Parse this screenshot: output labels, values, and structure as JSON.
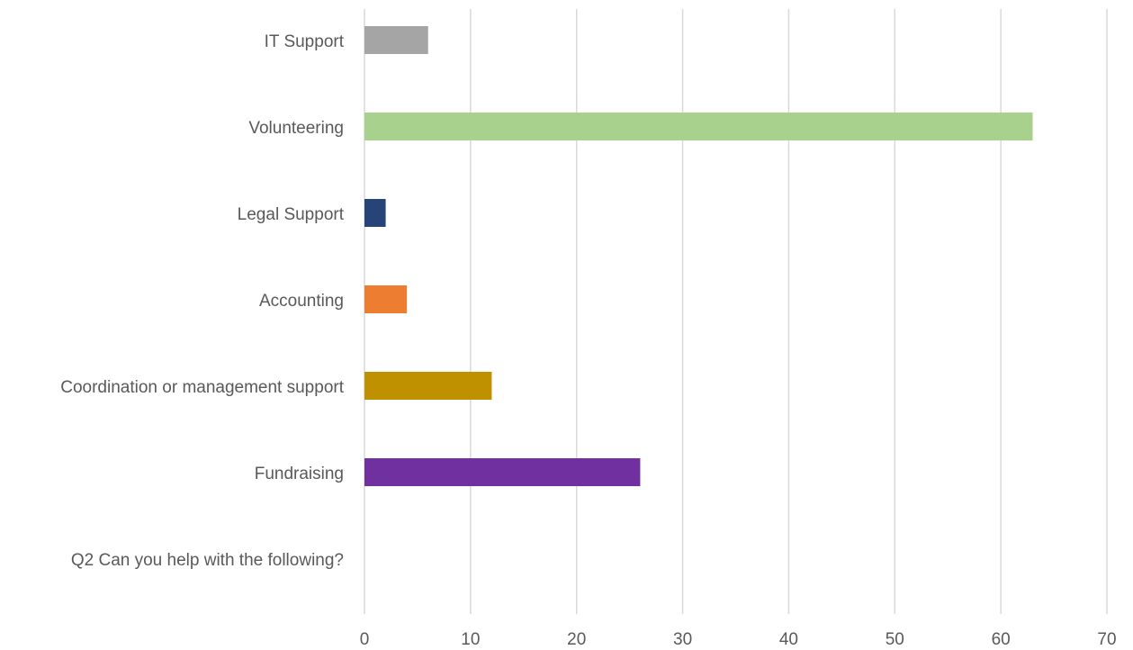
{
  "chart_data": {
    "type": "bar",
    "orientation": "horizontal",
    "categories": [
      "Q2 Can you help with the following?",
      "Fundraising",
      "Coordination or management support",
      "Accounting",
      "Legal Support",
      "Volunteering",
      "IT Support"
    ],
    "series": [
      {
        "values": [
          null,
          26,
          null,
          null,
          null,
          null,
          null
        ],
        "color": "#7030A0"
      },
      {
        "values": [
          null,
          null,
          12,
          null,
          null,
          null,
          null
        ],
        "color": "#BF9000"
      },
      {
        "values": [
          null,
          null,
          null,
          4,
          null,
          null,
          null
        ],
        "color": "#ED7D31"
      },
      {
        "values": [
          null,
          null,
          null,
          null,
          2,
          null,
          null
        ],
        "color": "#264478"
      },
      {
        "values": [
          null,
          null,
          null,
          null,
          null,
          63,
          null
        ],
        "color": "#A9D18E"
      },
      {
        "values": [
          null,
          null,
          null,
          null,
          null,
          null,
          6
        ],
        "color": "#A5A5A5"
      }
    ],
    "x_ticks": [
      "0",
      "10",
      "20",
      "30",
      "40",
      "50",
      "60",
      "70"
    ],
    "xlim": [
      0,
      70
    ],
    "grid": "vertical",
    "legend": "none"
  }
}
